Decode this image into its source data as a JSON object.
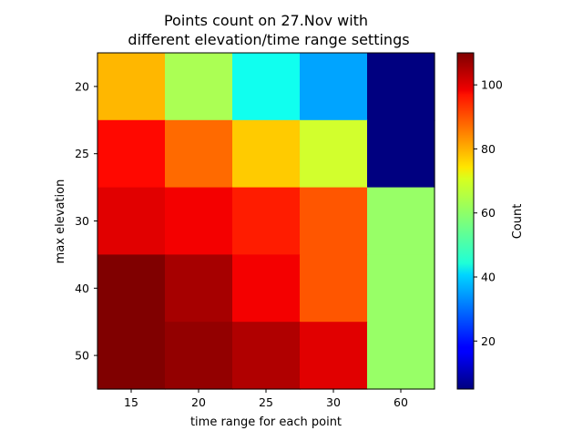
{
  "chart_data": {
    "type": "heatmap",
    "title_lines": [
      "Points count on 27.Nov with",
      "different elevation/time range settings"
    ],
    "xlabel": "time range for each point",
    "ylabel": "max elevation",
    "x_categories": [
      "15",
      "20",
      "25",
      "30",
      "60"
    ],
    "y_categories": [
      "20",
      "25",
      "30",
      "40",
      "50"
    ],
    "values": [
      [
        78,
        62,
        46,
        35,
        4
      ],
      [
        96,
        86,
        76,
        66,
        5
      ],
      [
        100,
        98,
        94,
        88,
        60
      ],
      [
        110,
        106,
        98,
        88,
        60
      ],
      [
        110,
        108,
        105,
        100,
        60
      ]
    ],
    "colormap": "jet",
    "colorbar": {
      "label": "Count",
      "range": [
        5,
        110
      ],
      "ticks": [
        "20",
        "40",
        "60",
        "80",
        "100"
      ]
    }
  }
}
